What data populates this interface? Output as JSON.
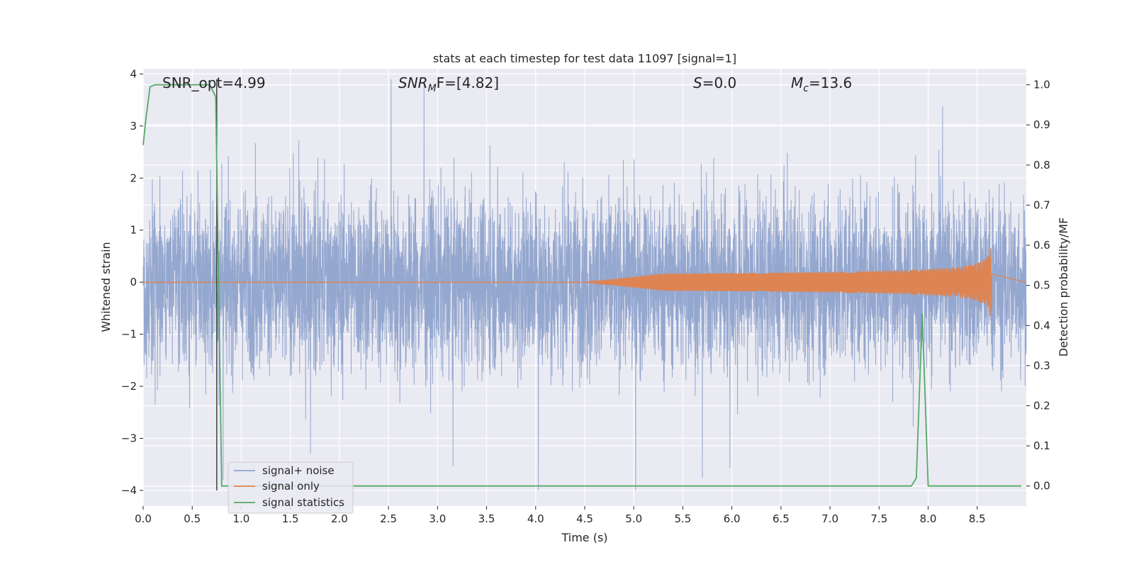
{
  "chart_data": {
    "type": "line",
    "title": "stats at each timestep for test data 11097 [signal=1]",
    "xlabel": "Time (s)",
    "ylabel": "Whitened strain",
    "y2label": "Detection probability/MF",
    "xlim": [
      0.0,
      9.0
    ],
    "ylim": [
      -4.3,
      4.1
    ],
    "y2lim": [
      -0.05,
      1.04
    ],
    "xticks": [
      "0.0",
      "0.5",
      "1.0",
      "1.5",
      "2.0",
      "2.5",
      "3.0",
      "3.5",
      "4.0",
      "4.5",
      "5.0",
      "5.5",
      "6.0",
      "6.5",
      "7.0",
      "7.5",
      "8.0",
      "8.5"
    ],
    "xtick_values": [
      0.0,
      0.5,
      1.0,
      1.5,
      2.0,
      2.5,
      3.0,
      3.5,
      4.0,
      4.5,
      5.0,
      5.5,
      6.0,
      6.5,
      7.0,
      7.5,
      8.0,
      8.5
    ],
    "yticks": [
      "−4",
      "−3",
      "−2",
      "−1",
      "0",
      "1",
      "2",
      "3",
      "4"
    ],
    "ytick_values": [
      -4,
      -3,
      -2,
      -1,
      0,
      1,
      2,
      3,
      4
    ],
    "y2ticks": [
      "0.0",
      "0.1",
      "0.2",
      "0.3",
      "0.4",
      "0.5",
      "0.6",
      "0.7",
      "0.8",
      "0.9",
      "1.0"
    ],
    "y2tick_values": [
      0.0,
      0.1,
      0.2,
      0.3,
      0.4,
      0.5,
      0.6,
      0.7,
      0.8,
      0.9,
      1.0
    ],
    "grid": true,
    "legend_position": "lower-left",
    "annotations": {
      "snr_opt": "SNR_opt=4.99",
      "snr_mf_main": "SNR",
      "snr_mf_sub": "M",
      "snr_mf_rest": "F=[4.82]",
      "s_main": "S",
      "s_rest": "=0.0",
      "mc_main": "M",
      "mc_sub": "c",
      "mc_rest": "=13.6"
    },
    "series": [
      {
        "name": "signal+ noise",
        "color": "#8fa3cc",
        "axis": "left",
        "description_kind": "dense noise trace between about -2.5 and 2.5 with spikes to about ±4"
      },
      {
        "name": "signal only",
        "color": "#dd8452",
        "axis": "left",
        "chirp": {
          "start": 4.5,
          "end": 8.65,
          "peak_amplitude": 0.9
        }
      },
      {
        "name": "signal statistics",
        "color": "#55a868",
        "axis": "right",
        "x": [
          0.0,
          0.03,
          0.07,
          0.12,
          0.3,
          0.5,
          0.62,
          0.68,
          0.74,
          0.8,
          1.5,
          3.0,
          5.0,
          7.0,
          7.83,
          7.88,
          7.94,
          8.0,
          8.5,
          8.95
        ],
        "y": [
          0.85,
          0.92,
          0.995,
          1.0,
          1.0,
          1.0,
          1.0,
          1.0,
          0.97,
          0.0,
          0.0,
          0.0,
          0.0,
          0.0,
          0.0,
          0.02,
          0.43,
          0.0,
          0.0,
          0.0
        ]
      }
    ],
    "vertical_marker": {
      "x": 0.75,
      "y_top": 3.9,
      "y_bottom": -4.0,
      "color": "#262626"
    }
  }
}
